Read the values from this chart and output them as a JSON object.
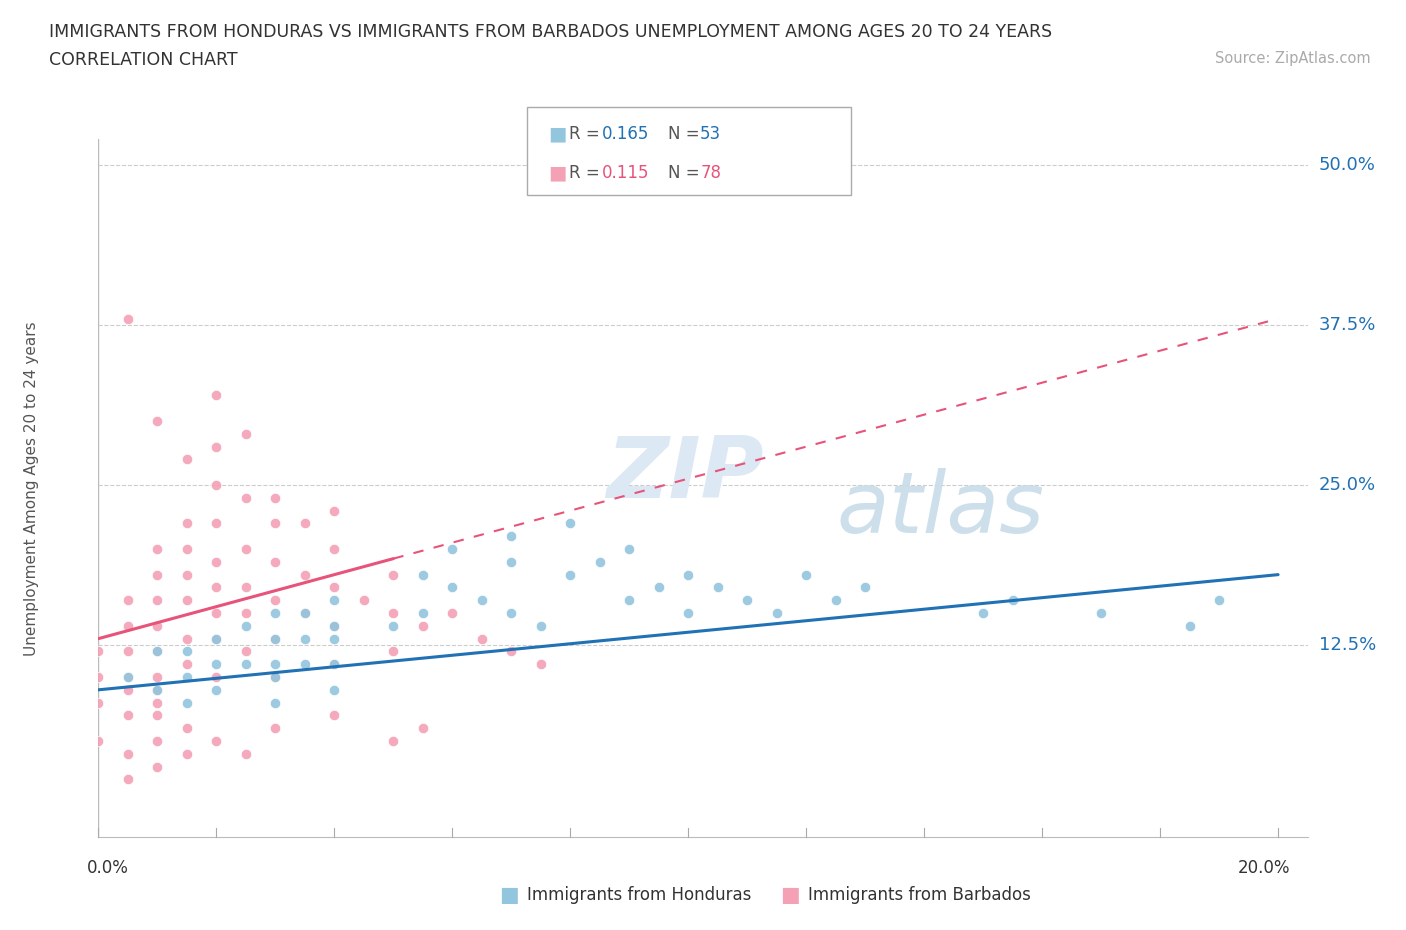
{
  "title_line1": "IMMIGRANTS FROM HONDURAS VS IMMIGRANTS FROM BARBADOS UNEMPLOYMENT AMONG AGES 20 TO 24 YEARS",
  "title_line2": "CORRELATION CHART",
  "source_text": "Source: ZipAtlas.com",
  "ylabel": "Unemployment Among Ages 20 to 24 years",
  "watermark_zip": "ZIP",
  "watermark_atlas": "atlas",
  "blue_color": "#92c5de",
  "pink_color": "#f4a0b5",
  "blue_line": "#2171b5",
  "pink_line": "#e8537a",
  "xlim": [
    0.0,
    0.205
  ],
  "ylim": [
    -0.025,
    0.52
  ],
  "ytick_vals": [
    0.125,
    0.25,
    0.375,
    0.5
  ],
  "ytick_labels": [
    "12.5%",
    "25.0%",
    "37.5%",
    "50.0%"
  ],
  "honduras_x": [
    0.005,
    0.01,
    0.01,
    0.015,
    0.015,
    0.015,
    0.02,
    0.02,
    0.02,
    0.025,
    0.025,
    0.03,
    0.03,
    0.03,
    0.03,
    0.03,
    0.035,
    0.035,
    0.035,
    0.04,
    0.04,
    0.04,
    0.04,
    0.04,
    0.05,
    0.055,
    0.055,
    0.06,
    0.06,
    0.065,
    0.07,
    0.07,
    0.07,
    0.075,
    0.08,
    0.08,
    0.085,
    0.09,
    0.09,
    0.095,
    0.1,
    0.1,
    0.105,
    0.11,
    0.115,
    0.12,
    0.125,
    0.13,
    0.15,
    0.155,
    0.17,
    0.185,
    0.19
  ],
  "honduras_y": [
    0.1,
    0.12,
    0.09,
    0.12,
    0.1,
    0.08,
    0.13,
    0.11,
    0.09,
    0.14,
    0.11,
    0.15,
    0.13,
    0.11,
    0.1,
    0.08,
    0.15,
    0.13,
    0.11,
    0.16,
    0.14,
    0.13,
    0.11,
    0.09,
    0.14,
    0.18,
    0.15,
    0.2,
    0.17,
    0.16,
    0.21,
    0.19,
    0.15,
    0.14,
    0.22,
    0.18,
    0.19,
    0.2,
    0.16,
    0.17,
    0.18,
    0.15,
    0.17,
    0.16,
    0.15,
    0.18,
    0.16,
    0.17,
    0.15,
    0.16,
    0.15,
    0.14,
    0.16
  ],
  "barbados_x": [
    0.0,
    0.0,
    0.0,
    0.0,
    0.005,
    0.005,
    0.005,
    0.005,
    0.005,
    0.005,
    0.005,
    0.01,
    0.01,
    0.01,
    0.01,
    0.01,
    0.01,
    0.01,
    0.01,
    0.01,
    0.01,
    0.015,
    0.015,
    0.015,
    0.015,
    0.015,
    0.015,
    0.02,
    0.02,
    0.02,
    0.02,
    0.02,
    0.02,
    0.02,
    0.025,
    0.025,
    0.025,
    0.025,
    0.025,
    0.03,
    0.03,
    0.03,
    0.03,
    0.03,
    0.035,
    0.035,
    0.04,
    0.04,
    0.04,
    0.04,
    0.045,
    0.05,
    0.05,
    0.05,
    0.055,
    0.06,
    0.065,
    0.07,
    0.075,
    0.005,
    0.01,
    0.015,
    0.02,
    0.02,
    0.025,
    0.03,
    0.035,
    0.04,
    0.005,
    0.01,
    0.015,
    0.015,
    0.02,
    0.025,
    0.03,
    0.04,
    0.05,
    0.055
  ],
  "barbados_y": [
    0.12,
    0.1,
    0.08,
    0.05,
    0.16,
    0.14,
    0.12,
    0.1,
    0.09,
    0.07,
    0.04,
    0.2,
    0.18,
    0.16,
    0.14,
    0.12,
    0.1,
    0.09,
    0.08,
    0.07,
    0.05,
    0.22,
    0.2,
    0.18,
    0.16,
    0.13,
    0.11,
    0.25,
    0.22,
    0.19,
    0.17,
    0.15,
    0.13,
    0.1,
    0.24,
    0.2,
    0.17,
    0.15,
    0.12,
    0.22,
    0.19,
    0.16,
    0.13,
    0.1,
    0.18,
    0.15,
    0.2,
    0.17,
    0.14,
    0.11,
    0.16,
    0.18,
    0.15,
    0.12,
    0.14,
    0.15,
    0.13,
    0.12,
    0.11,
    0.38,
    0.3,
    0.27,
    0.32,
    0.28,
    0.29,
    0.24,
    0.22,
    0.23,
    0.02,
    0.03,
    0.04,
    0.06,
    0.05,
    0.04,
    0.06,
    0.07,
    0.05,
    0.06
  ]
}
